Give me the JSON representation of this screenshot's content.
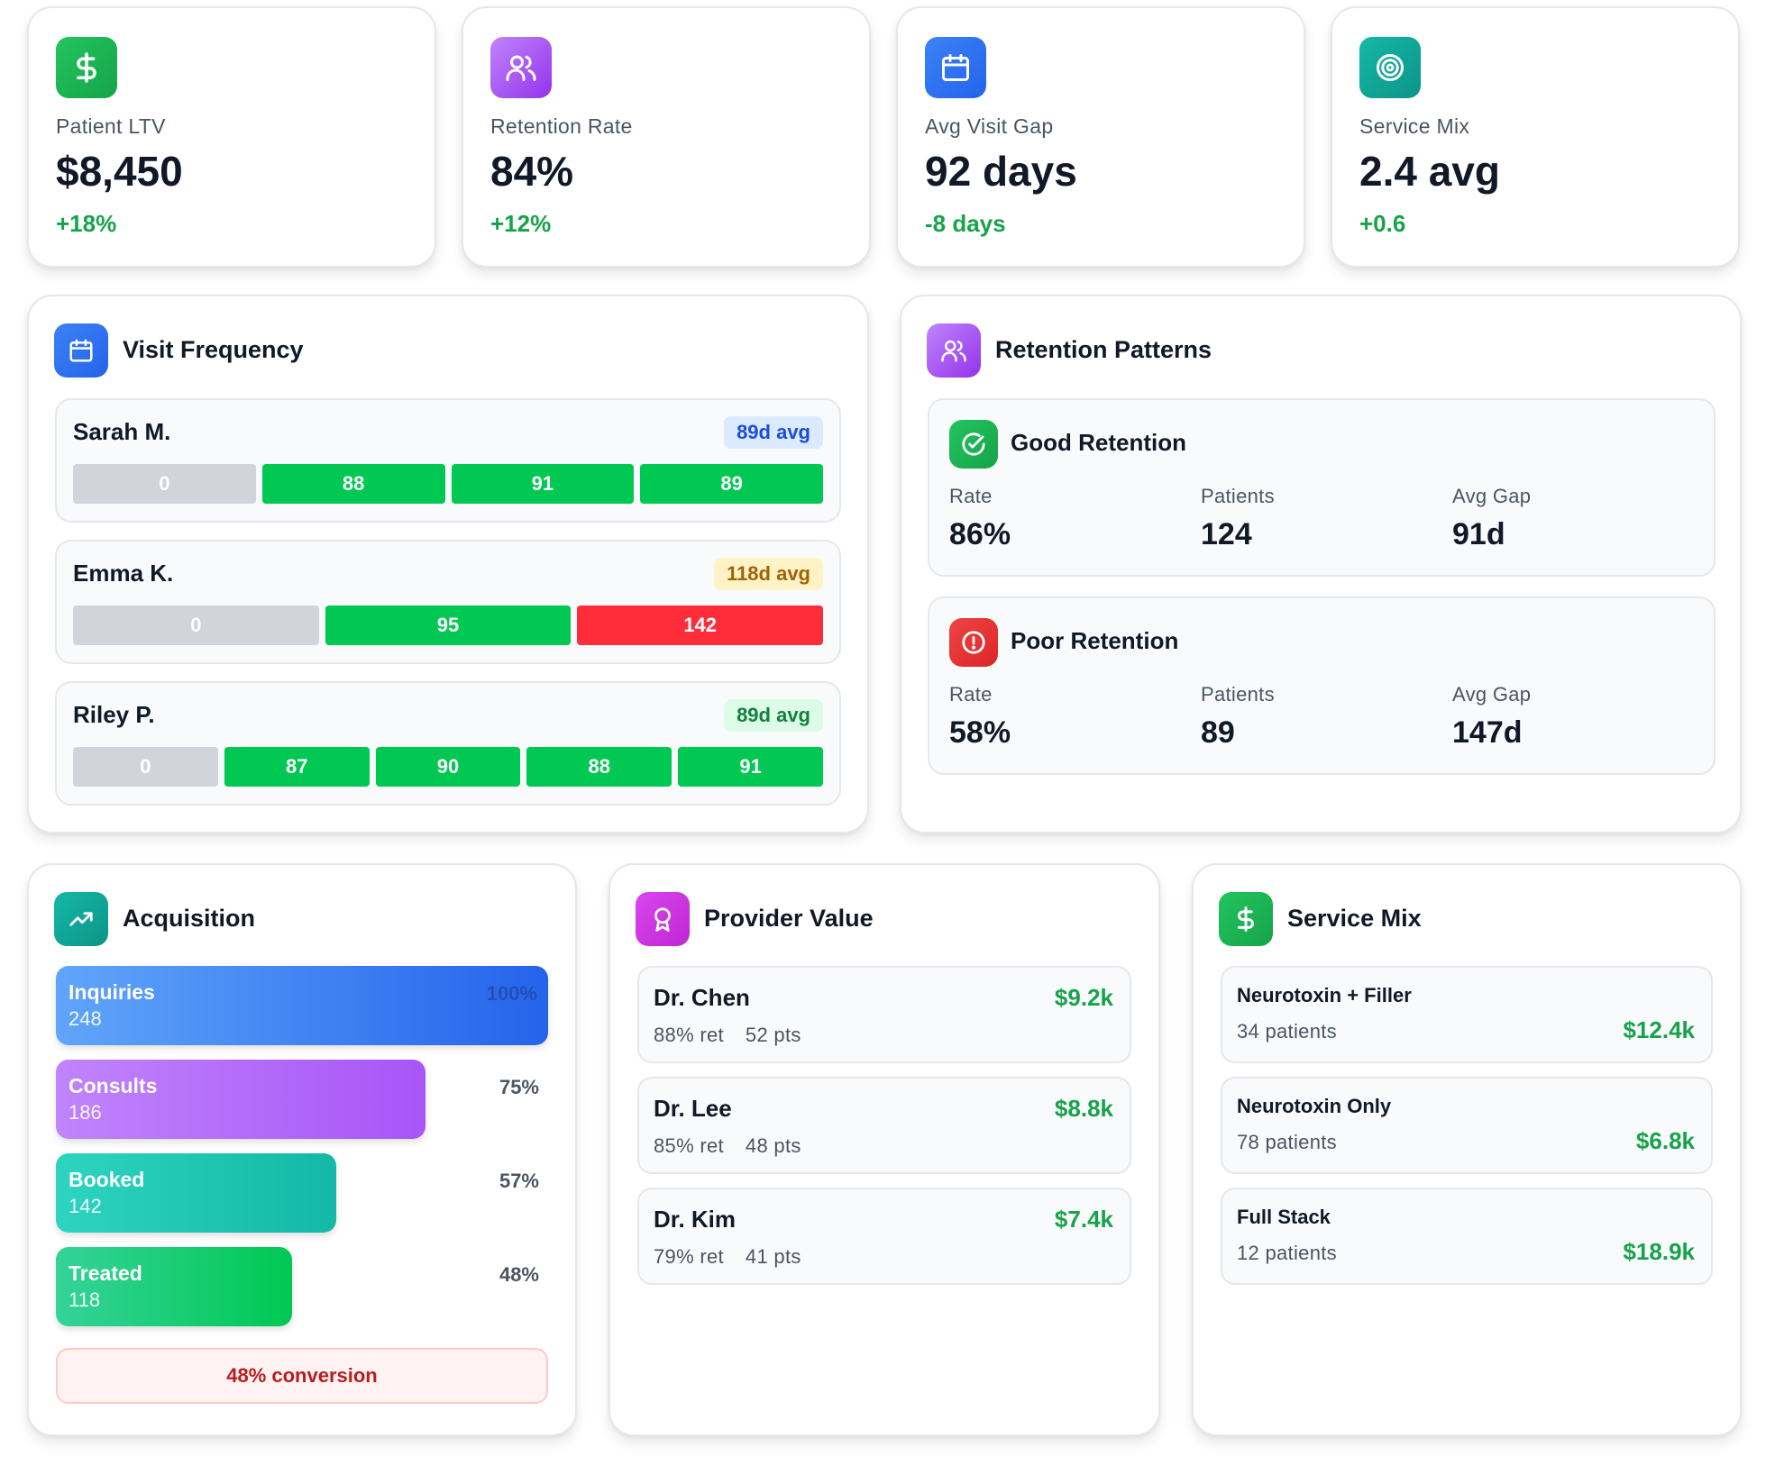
{
  "stats": [
    {
      "label": "Patient LTV",
      "value": "$8,450",
      "change": "+18%",
      "icon": "dollar-icon"
    },
    {
      "label": "Retention Rate",
      "value": "84%",
      "change": "+12%",
      "icon": "users-icon"
    },
    {
      "label": "Avg Visit Gap",
      "value": "92 days",
      "change": "-8 days",
      "icon": "calendar-icon"
    },
    {
      "label": "Service Mix",
      "value": "2.4 avg",
      "change": "+0.6",
      "icon": "target-icon"
    }
  ],
  "visit_frequency": {
    "title": "Visit Frequency",
    "patients": [
      {
        "name": "Sarah M.",
        "avg": "89d avg",
        "avg_status": "normal",
        "gaps": [
          "0",
          "88",
          "91",
          "89"
        ],
        "gap_status": [
          "first",
          "ok",
          "ok",
          "ok"
        ]
      },
      {
        "name": "Emma K.",
        "avg": "118d avg",
        "avg_status": "warning",
        "gaps": [
          "0",
          "95",
          "142"
        ],
        "gap_status": [
          "first",
          "ok",
          "late"
        ]
      },
      {
        "name": "Riley P.",
        "avg": "89d avg",
        "avg_status": "good",
        "gaps": [
          "0",
          "87",
          "90",
          "88",
          "91"
        ],
        "gap_status": [
          "first",
          "ok",
          "ok",
          "ok",
          "ok"
        ]
      }
    ]
  },
  "retention_patterns": {
    "title": "Retention Patterns",
    "groups": [
      {
        "title": "Good Retention",
        "icon": "check-circle-icon",
        "rate_label": "Rate",
        "rate": "86%",
        "patients_label": "Patients",
        "patients": "124",
        "gap_label": "Avg Gap",
        "gap": "91d"
      },
      {
        "title": "Poor Retention",
        "icon": "alert-circle-icon",
        "rate_label": "Rate",
        "rate": "58%",
        "patients_label": "Patients",
        "patients": "89",
        "gap_label": "Avg Gap",
        "gap": "147d"
      }
    ]
  },
  "acquisition": {
    "title": "Acquisition",
    "stages": [
      {
        "name": "Inquiries",
        "count": "248",
        "pct": "100%",
        "fraction": 1.0
      },
      {
        "name": "Consults",
        "count": "186",
        "pct": "75%",
        "fraction": 0.75
      },
      {
        "name": "Booked",
        "count": "142",
        "pct": "57%",
        "fraction": 0.57
      },
      {
        "name": "Treated",
        "count": "118",
        "pct": "48%",
        "fraction": 0.48
      }
    ],
    "conversion": "48% conversion"
  },
  "provider_value": {
    "title": "Provider Value",
    "providers": [
      {
        "name": "Dr. Chen",
        "value": "$9.2k",
        "retention": "88% ret",
        "patients": "52 pts"
      },
      {
        "name": "Dr. Lee",
        "value": "$8.8k",
        "retention": "85% ret",
        "patients": "48 pts"
      },
      {
        "name": "Dr. Kim",
        "value": "$7.4k",
        "retention": "79% ret",
        "patients": "41 pts"
      }
    ]
  },
  "service_mix": {
    "title": "Service Mix",
    "services": [
      {
        "name": "Neurotoxin + Filler",
        "patients": "34 patients",
        "value": "$12.4k"
      },
      {
        "name": "Neurotoxin Only",
        "patients": "78 patients",
        "value": "$6.8k"
      },
      {
        "name": "Full Stack",
        "patients": "12 patients",
        "value": "$18.9k"
      }
    ]
  },
  "colors": {
    "positive": "#16a34a",
    "segment_ok": "#00c853",
    "segment_late": "#ff2d3a",
    "segment_first": "#d1d5db",
    "badge_normal_bg": "#dbeafe",
    "badge_normal_fg": "#1d4ed8",
    "badge_warning_bg": "#fef3c7",
    "badge_warning_fg": "#a16207",
    "badge_good_bg": "#dcfce7",
    "badge_good_fg": "#15803d"
  }
}
